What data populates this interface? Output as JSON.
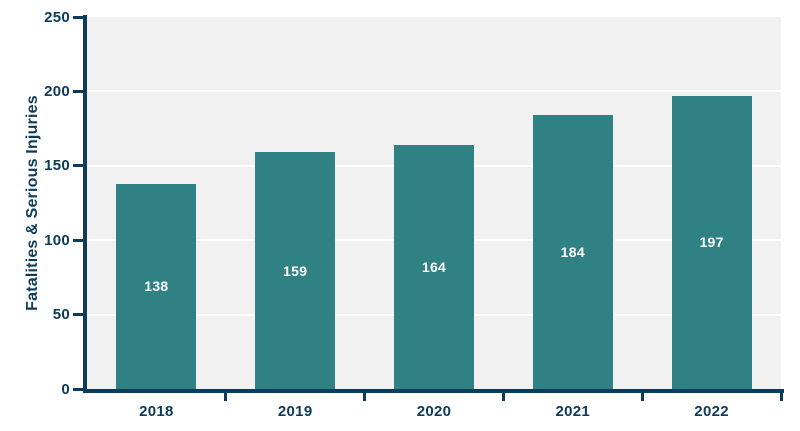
{
  "chart_data": {
    "type": "bar",
    "title": "",
    "categories": [
      "2018",
      "2019",
      "2020",
      "2021",
      "2022"
    ],
    "values": [
      138,
      159,
      164,
      184,
      197
    ],
    "xlabel": "",
    "ylabel": "Fatalities & Serious Injuries",
    "ylim": [
      0,
      250
    ],
    "yticks": [
      0,
      50,
      100,
      150,
      200,
      250
    ],
    "grid": "horizontal gridlines at each y tick",
    "legend_position": "none",
    "data_labels": "value shown in white, centered inside each bar",
    "colors": {
      "bar": "#2F8184",
      "axis": "#0D3B59",
      "plot_background": "#F1F1F2",
      "gridline": "#FFFFFF",
      "data_label": "#FFFFFF",
      "page_background": "#FFFFFF"
    }
  }
}
